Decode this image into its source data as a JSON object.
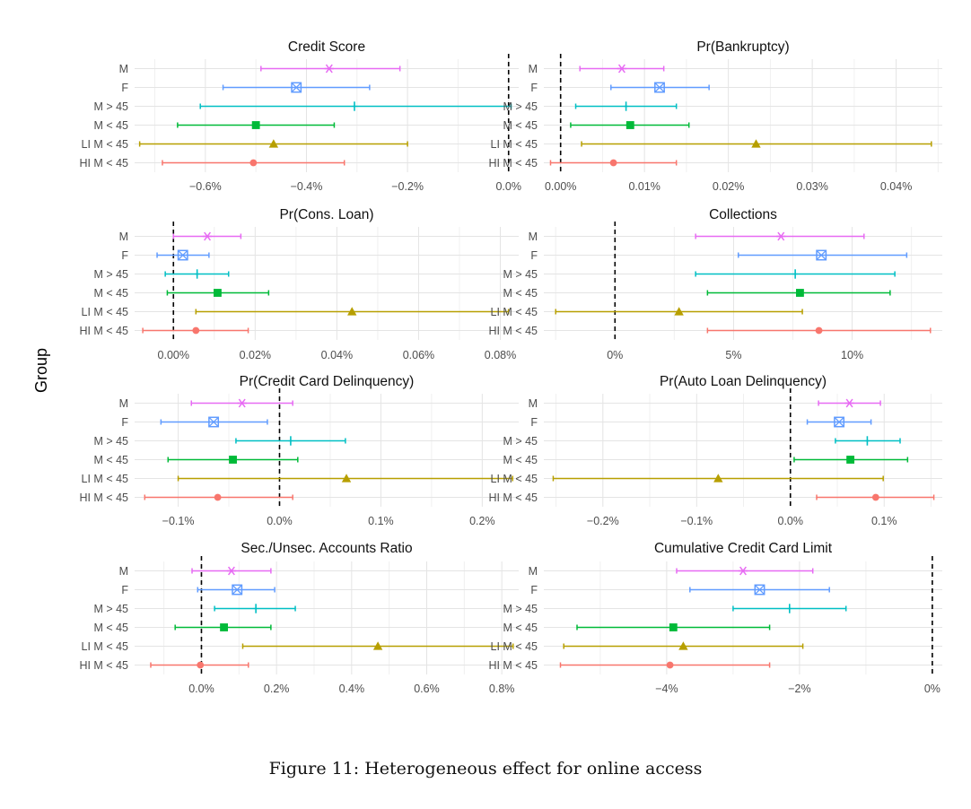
{
  "figure": {
    "ylabel": "Group",
    "caption": "Figure 11: Heterogeneous effect for online access"
  },
  "groups": [
    "M",
    "F",
    "M > 45",
    "M < 45",
    "LI M < 45",
    "HI M < 45"
  ],
  "colors": {
    "M": "#e76bf3",
    "F": "#619cff",
    "M > 45": "#00bfc4",
    "M < 45": "#00ba38",
    "LI M < 45": "#b79f00",
    "HI M < 45": "#f8766d"
  },
  "markers": {
    "M": "asterisk",
    "F": "square-cross",
    "M > 45": "plus",
    "M < 45": "filled-square",
    "LI M < 45": "filled-triangle",
    "HI M < 45": "filled-circle"
  },
  "chart_data": [
    {
      "type": "dot-whisker",
      "title": "Credit Score",
      "xlim": [
        -0.74,
        0.02
      ],
      "ticks": [
        -0.6,
        -0.4,
        -0.2,
        0.0
      ],
      "tick_labels": [
        "−0.6%",
        "−0.4%",
        "−0.2%",
        "0.0%"
      ],
      "points": [
        {
          "group": "M",
          "est": -0.355,
          "lo": -0.49,
          "hi": -0.215
        },
        {
          "group": "F",
          "est": -0.42,
          "lo": -0.565,
          "hi": -0.275
        },
        {
          "group": "M > 45",
          "est": -0.305,
          "lo": -0.61,
          "hi": 0.005
        },
        {
          "group": "M < 45",
          "est": -0.5,
          "lo": -0.655,
          "hi": -0.345
        },
        {
          "group": "LI M < 45",
          "est": -0.465,
          "lo": -0.73,
          "hi": -0.2
        },
        {
          "group": "HI M < 45",
          "est": -0.505,
          "lo": -0.685,
          "hi": -0.325
        }
      ]
    },
    {
      "type": "dot-whisker",
      "title": "Pr(Bankruptcy)",
      "xlim": [
        -0.002,
        0.0455
      ],
      "ticks": [
        0.0,
        0.01,
        0.02,
        0.03,
        0.04
      ],
      "tick_labels": [
        "0.00%",
        "0.01%",
        "0.02%",
        "0.03%",
        "0.04%"
      ],
      "points": [
        {
          "group": "M",
          "est": 0.0073,
          "lo": 0.0023,
          "hi": 0.0123
        },
        {
          "group": "F",
          "est": 0.0118,
          "lo": 0.006,
          "hi": 0.0177
        },
        {
          "group": "M > 45",
          "est": 0.0078,
          "lo": 0.0018,
          "hi": 0.0138
        },
        {
          "group": "M < 45",
          "est": 0.0083,
          "lo": 0.0012,
          "hi": 0.0153
        },
        {
          "group": "LI M < 45",
          "est": 0.0233,
          "lo": 0.0025,
          "hi": 0.0442
        },
        {
          "group": "HI M < 45",
          "est": 0.0063,
          "lo": -0.0012,
          "hi": 0.0138
        }
      ]
    },
    {
      "type": "dot-whisker",
      "title": "Pr(Cons. Loan)",
      "xlim": [
        -0.0095,
        0.0845
      ],
      "ticks": [
        0.0,
        0.02,
        0.04,
        0.06,
        0.08
      ],
      "tick_labels": [
        "0.00%",
        "0.02%",
        "0.04%",
        "0.06%",
        "0.08%"
      ],
      "points": [
        {
          "group": "M",
          "est": 0.0083,
          "lo": 0.0,
          "hi": 0.0165
        },
        {
          "group": "F",
          "est": 0.0023,
          "lo": -0.004,
          "hi": 0.0087
        },
        {
          "group": "M > 45",
          "est": 0.0058,
          "lo": -0.002,
          "hi": 0.0135
        },
        {
          "group": "M < 45",
          "est": 0.0108,
          "lo": -0.0015,
          "hi": 0.0233
        },
        {
          "group": "LI M < 45",
          "est": 0.0437,
          "lo": 0.0055,
          "hi": 0.082
        },
        {
          "group": "HI M < 45",
          "est": 0.0055,
          "lo": -0.0075,
          "hi": 0.0183
        }
      ]
    },
    {
      "type": "dot-whisker",
      "title": "Collections",
      "xlim": [
        -3.0,
        13.8
      ],
      "ticks": [
        0,
        5,
        10
      ],
      "tick_labels": [
        "0%",
        "5%",
        "10%"
      ],
      "points": [
        {
          "group": "M",
          "est": 7.0,
          "lo": 3.4,
          "hi": 10.5
        },
        {
          "group": "F",
          "est": 8.7,
          "lo": 5.2,
          "hi": 12.3
        },
        {
          "group": "M > 45",
          "est": 7.6,
          "lo": 3.4,
          "hi": 11.8
        },
        {
          "group": "M < 45",
          "est": 7.8,
          "lo": 3.9,
          "hi": 11.6
        },
        {
          "group": "LI M < 45",
          "est": 2.7,
          "lo": -2.5,
          "hi": 7.9
        },
        {
          "group": "HI M < 45",
          "est": 8.6,
          "lo": 3.9,
          "hi": 13.3
        }
      ]
    },
    {
      "type": "dot-whisker",
      "title": "Pr(Credit Card Delinquency)",
      "xlim": [
        -0.143,
        0.236
      ],
      "ticks": [
        -0.1,
        0.0,
        0.1,
        0.2
      ],
      "tick_labels": [
        "−0.1%",
        "0.0%",
        "0.1%",
        "0.2%"
      ],
      "points": [
        {
          "group": "M",
          "est": -0.037,
          "lo": -0.087,
          "hi": 0.013
        },
        {
          "group": "F",
          "est": -0.065,
          "lo": -0.117,
          "hi": -0.012
        },
        {
          "group": "M > 45",
          "est": 0.011,
          "lo": -0.043,
          "hi": 0.065
        },
        {
          "group": "M < 45",
          "est": -0.046,
          "lo": -0.11,
          "hi": 0.018
        },
        {
          "group": "LI M < 45",
          "est": 0.066,
          "lo": -0.1,
          "hi": 0.23
        },
        {
          "group": "HI M < 45",
          "est": -0.061,
          "lo": -0.133,
          "hi": 0.013
        }
      ]
    },
    {
      "type": "dot-whisker",
      "title": "Pr(Auto Loan Delinquency)",
      "xlim": [
        -0.263,
        0.162
      ],
      "ticks": [
        -0.2,
        -0.1,
        0.0,
        0.1
      ],
      "tick_labels": [
        "−0.2%",
        "−0.1%",
        "0.0%",
        "0.1%"
      ],
      "points": [
        {
          "group": "M",
          "est": 0.063,
          "lo": 0.03,
          "hi": 0.096
        },
        {
          "group": "F",
          "est": 0.052,
          "lo": 0.018,
          "hi": 0.086
        },
        {
          "group": "M > 45",
          "est": 0.082,
          "lo": 0.048,
          "hi": 0.117
        },
        {
          "group": "M < 45",
          "est": 0.064,
          "lo": 0.004,
          "hi": 0.125
        },
        {
          "group": "LI M < 45",
          "est": -0.077,
          "lo": -0.253,
          "hi": 0.099
        },
        {
          "group": "HI M < 45",
          "est": 0.091,
          "lo": 0.028,
          "hi": 0.153
        }
      ]
    },
    {
      "type": "dot-whisker",
      "title": "Sec./Unsec. Accounts Ratio",
      "xlim": [
        -0.178,
        0.845
      ],
      "ticks": [
        0.0,
        0.2,
        0.4,
        0.6,
        0.8
      ],
      "tick_labels": [
        "0.0%",
        "0.2%",
        "0.4%",
        "0.6%",
        "0.8%"
      ],
      "points": [
        {
          "group": "M",
          "est": 0.08,
          "lo": -0.025,
          "hi": 0.185
        },
        {
          "group": "F",
          "est": 0.095,
          "lo": -0.01,
          "hi": 0.195
        },
        {
          "group": "M > 45",
          "est": 0.145,
          "lo": 0.035,
          "hi": 0.25
        },
        {
          "group": "M < 45",
          "est": 0.06,
          "lo": -0.07,
          "hi": 0.185
        },
        {
          "group": "LI M < 45",
          "est": 0.47,
          "lo": 0.11,
          "hi": 0.83
        },
        {
          "group": "HI M < 45",
          "est": -0.003,
          "lo": -0.135,
          "hi": 0.125
        }
      ]
    },
    {
      "type": "dot-whisker",
      "title": "Cumulative Credit Card Limit",
      "xlim": [
        -5.85,
        0.15
      ],
      "ticks": [
        -4,
        -2,
        0
      ],
      "tick_labels": [
        "−4%",
        "−2%",
        "0%"
      ],
      "points": [
        {
          "group": "M",
          "est": -2.85,
          "lo": -3.85,
          "hi": -1.8
        },
        {
          "group": "F",
          "est": -2.6,
          "lo": -3.65,
          "hi": -1.55
        },
        {
          "group": "M > 45",
          "est": -2.15,
          "lo": -3.0,
          "hi": -1.3
        },
        {
          "group": "M < 45",
          "est": -3.9,
          "lo": -5.35,
          "hi": -2.45
        },
        {
          "group": "LI M < 45",
          "est": -3.75,
          "lo": -5.55,
          "hi": -1.95
        },
        {
          "group": "HI M < 45",
          "est": -3.95,
          "lo": -5.6,
          "hi": -2.45
        }
      ]
    }
  ]
}
